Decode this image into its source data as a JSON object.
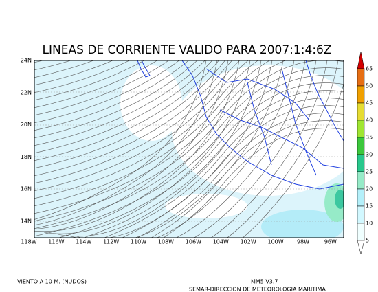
{
  "title": "LINEAS DE CORRIENTE VALIDO PARA 2007:1:4:6Z",
  "map": {
    "lat_labels": [
      "24N",
      "22N",
      "20N",
      "18N",
      "16N",
      "14N"
    ],
    "lon_labels": [
      "118W",
      "116W",
      "114W",
      "112W",
      "110W",
      "108W",
      "106W",
      "104W",
      "102W",
      "100W",
      "98W",
      "96W"
    ]
  },
  "colorbar": {
    "labels": [
      65,
      50,
      45,
      40,
      35,
      30,
      25,
      20,
      15,
      10,
      5
    ],
    "colors": [
      "#e66e14",
      "#f0a000",
      "#e6dc32",
      "#a0e632",
      "#3cc83c",
      "#28c88c",
      "#96ebc8",
      "#b4f0fa",
      "#d2f8ff",
      "#f0ffff"
    ],
    "top_color": "#d20000"
  },
  "footer": {
    "left": "VIENTO A 10 M. (NUDOS)",
    "model": "MM5-V3.7",
    "credit": "SEMAR-DIRECCION DE METEOROLOGIA MARITIMA"
  }
}
